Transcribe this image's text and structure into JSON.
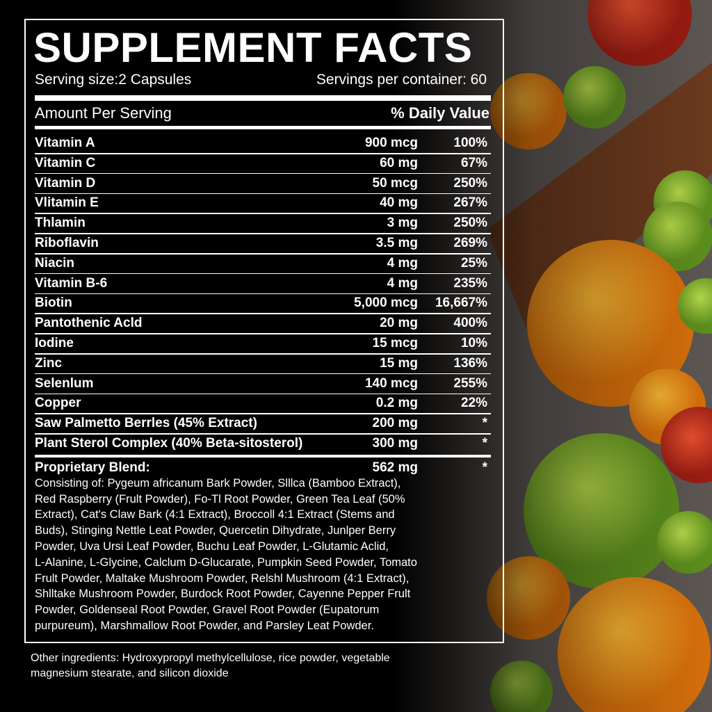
{
  "title": "SUPPLEMENT FACTS",
  "serving_size": "Serving size:2 Capsules",
  "servings_per_container": "Servings per container: 60",
  "header": {
    "amount": "Amount Per Serving",
    "daily_value": "% Daily Value"
  },
  "rows": [
    [
      "Vitamin A",
      "900 mcg",
      "100%"
    ],
    [
      "Vitamin C",
      "60 mg",
      "67%"
    ],
    [
      "Vitamin D",
      "50 mcg",
      "250%"
    ],
    [
      "Vlitamin E",
      "40 mg",
      "267%"
    ],
    [
      "Thlamin",
      "3 mg",
      "250%"
    ],
    [
      "Riboflavin",
      "3.5 mg",
      "269%"
    ],
    [
      "Niacin",
      "4 mg",
      "25%"
    ],
    [
      "Vitamin B-6",
      "4 mg",
      "235%"
    ],
    [
      "Biotin",
      "5,000 mcg",
      "16,667%"
    ],
    [
      "Pantothenic Acld",
      "20 mg",
      "400%"
    ],
    [
      "Iodine",
      "15 mcg",
      "10%"
    ],
    [
      "Zinc",
      "15 mg",
      "136%"
    ],
    [
      "Selenlum",
      "140 mcg",
      "255%"
    ],
    [
      "Copper",
      "0.2 mg",
      "22%"
    ],
    [
      "Saw Palmetto Berrles (45% Extract)",
      "200 mg",
      "*"
    ],
    [
      "Plant Sterol Complex (40% Beta-sitosterol)",
      "300 mg",
      "*"
    ]
  ],
  "blend": {
    "name": "Proprietary Blend:",
    "amount": "562 mg",
    "daily_value": "*",
    "description": [
      "Consisting of: Pygeum africanum Bark Powder, Slllca (Bamboo Extract),",
      "Red Raspberry (Frult Powder), Fo-Tl Root Powder, Green Tea Leaf (50%",
      "Extract), Cat's Claw Bark (4:1 Extract), Broccoll 4:1 Extract (Stems and",
      "Buds), Stinging Nettle Leat Powder, Quercetin Dihydrate, Junlper Berry",
      "Powder, Uva Ursi Leaf Powder, Buchu Leaf Powder, L-Glutamic Aclid,",
      "L-Alanine, L-Glycine, Calclum D-Glucarate, Pumpkin Seed Powder, Tomato",
      "Frult Powder, Maltake Mushroom Powder, Relshl Mushroom (4:1 Extract),",
      "Shlltake Mushroom Powder, Burdock Root Powder, Cayenne Pepper Frult",
      "Powder, Goldenseal Root Powder, Gravel Root Powder (Eupatorum",
      "purpureum), Marshmallow Root Powder, and Parsley Leat Powder."
    ]
  },
  "other_ingredients": [
    "Other ingredients: Hydroxypropyl methylcellulose, rice powder, vegetable",
    "magnesium stearate, and silicon dioxide"
  ]
}
